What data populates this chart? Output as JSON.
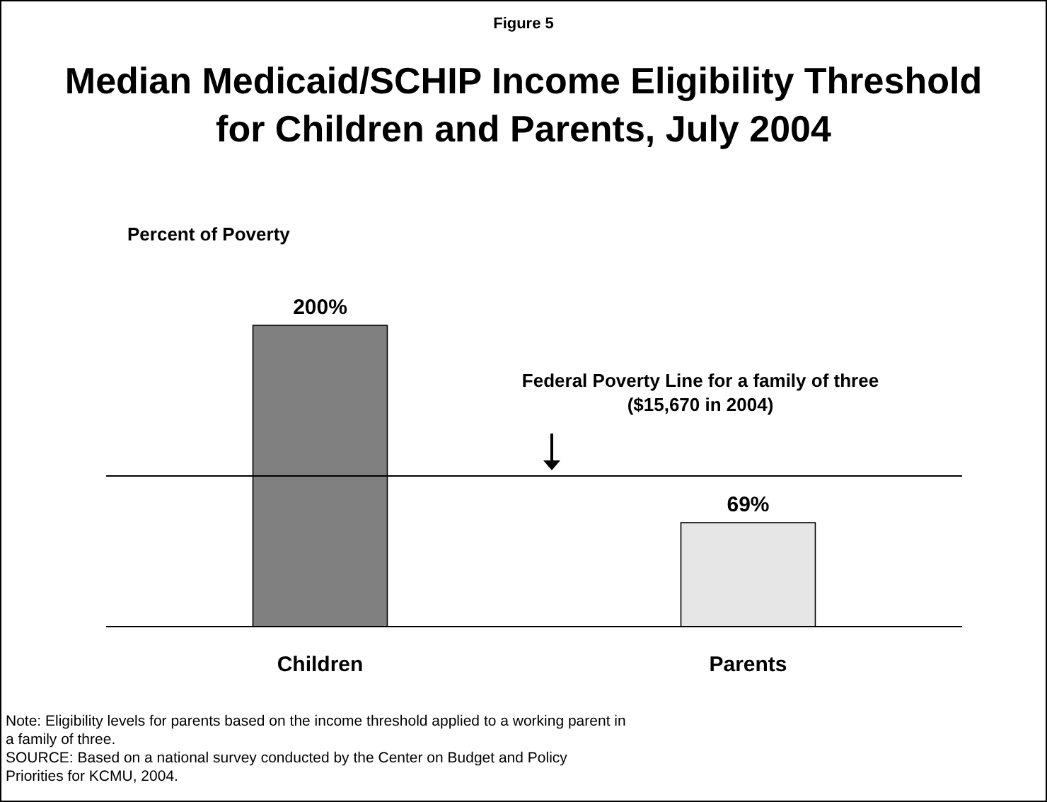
{
  "chart_data": {
    "type": "bar",
    "title": "Median Medicaid/SCHIP Income Eligibility Threshold for Children and Parents, July 2004",
    "ylabel": "Percent of Poverty",
    "categories": [
      "Children",
      "Parents"
    ],
    "values": [
      200,
      69
    ],
    "colors": [
      "#808080",
      "#e6e6e6"
    ],
    "value_labels": [
      "200%",
      "69%"
    ],
    "ylim": [
      0,
      200
    ],
    "tick_labels": "x",
    "ref_lines": [
      {
        "axis": "y",
        "value": 100,
        "label": "Federal Poverty Line for a family of three ($15,670 in 2004)",
        "color": "#000000"
      }
    ],
    "annotations": [
      "Figure 5",
      "Note: Eligibility levels for parents based on the income threshold applied to a working parent in a family of three.",
      "SOURCE: Based on a national survey conducted by the Center on Budget and Policy Priorities for KCMU, 2004."
    ]
  }
}
